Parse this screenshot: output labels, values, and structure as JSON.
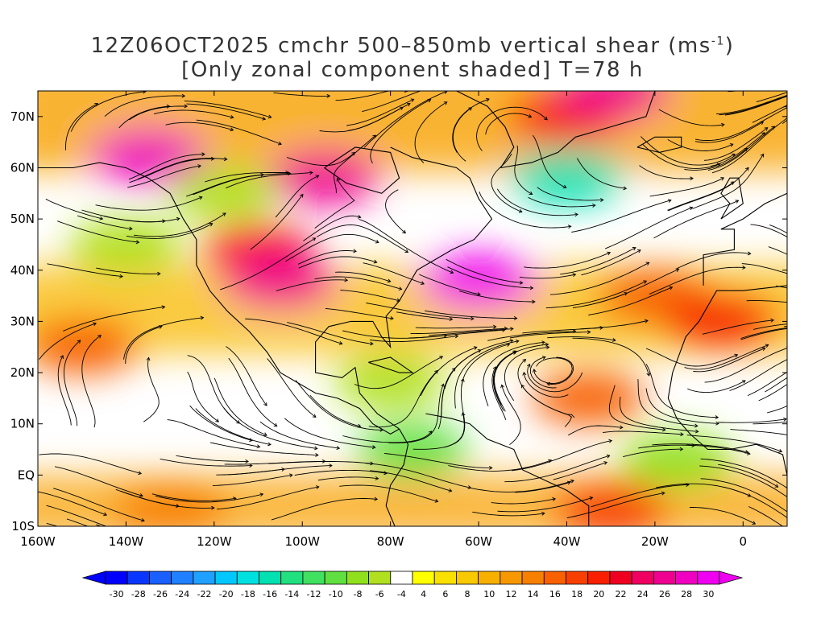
{
  "title_line1": "12Z06OCT2025 cmchr 500–850mb vertical shear (ms",
  "title_line1_sup": "-1",
  "title_line1_end": ")",
  "title_line2": "[Only zonal component shaded] T=78 h",
  "map": {
    "lon_range": [
      -160,
      10
    ],
    "lat_range": [
      -10,
      75
    ],
    "lat_ticks": [
      {
        "value": 70,
        "label": "70N"
      },
      {
        "value": 60,
        "label": "60N"
      },
      {
        "value": 50,
        "label": "50N"
      },
      {
        "value": 40,
        "label": "40N"
      },
      {
        "value": 30,
        "label": "30N"
      },
      {
        "value": 20,
        "label": "20N"
      },
      {
        "value": 10,
        "label": "10N"
      },
      {
        "value": 0,
        "label": "EQ"
      },
      {
        "value": -10,
        "label": "10S"
      }
    ],
    "lon_ticks": [
      {
        "value": -160,
        "label": "160W"
      },
      {
        "value": -140,
        "label": "140W"
      },
      {
        "value": -120,
        "label": "120W"
      },
      {
        "value": -100,
        "label": "100W"
      },
      {
        "value": -80,
        "label": "80W"
      },
      {
        "value": -60,
        "label": "60W"
      },
      {
        "value": -40,
        "label": "40W"
      },
      {
        "value": -20,
        "label": "20W"
      },
      {
        "value": 0,
        "label": "0"
      }
    ],
    "shear_regions": [
      {
        "lon": -135,
        "lat": 62,
        "value": 26
      },
      {
        "lon": -95,
        "lat": 58,
        "value": 24
      },
      {
        "lon": -60,
        "lat": 38,
        "value": 28
      },
      {
        "lon": -110,
        "lat": 44,
        "value": 18
      },
      {
        "lon": -105,
        "lat": 38,
        "value": 24
      },
      {
        "lon": -150,
        "lat": 25,
        "value": 14
      },
      {
        "lon": -40,
        "lat": 70,
        "value": 18
      },
      {
        "lon": -30,
        "lat": 75,
        "value": 24
      },
      {
        "lon": -20,
        "lat": 35,
        "value": 14
      },
      {
        "lon": -5,
        "lat": 30,
        "value": 18
      },
      {
        "lon": -35,
        "lat": 15,
        "value": 14
      },
      {
        "lon": -30,
        "lat": -7,
        "value": 16
      },
      {
        "lon": -130,
        "lat": -7,
        "value": 12
      },
      {
        "lon": -40,
        "lat": 58,
        "value": -18
      },
      {
        "lon": -80,
        "lat": 18,
        "value": -8
      },
      {
        "lon": -75,
        "lat": 5,
        "value": -12
      },
      {
        "lon": -15,
        "lat": 3,
        "value": -10
      },
      {
        "lon": -140,
        "lat": 45,
        "value": -8
      },
      {
        "lon": -118,
        "lat": 55,
        "value": -8
      }
    ]
  },
  "colorbar": {
    "colors": [
      "#0000ff",
      "#0a37ff",
      "#1a5fff",
      "#2080ff",
      "#20a0ff",
      "#00c8ff",
      "#00e0e0",
      "#00e0b0",
      "#20e080",
      "#40e060",
      "#60e040",
      "#90e020",
      "#b0e020",
      "#ffffff",
      "#ffff00",
      "#f8e000",
      "#f8c800",
      "#f8b000",
      "#f89800",
      "#f88000",
      "#f86000",
      "#f84000",
      "#f82000",
      "#f00020",
      "#f00060",
      "#f00090",
      "#f000c0",
      "#f000f0"
    ],
    "labels": [
      "-30",
      "-28",
      "-26",
      "-24",
      "-22",
      "-20",
      "-18",
      "-16",
      "-14",
      "-12",
      "-10",
      "-8",
      "-6",
      "-4",
      "4",
      "6",
      "8",
      "10",
      "12",
      "14",
      "16",
      "18",
      "20",
      "22",
      "24",
      "26",
      "28",
      "30"
    ]
  }
}
